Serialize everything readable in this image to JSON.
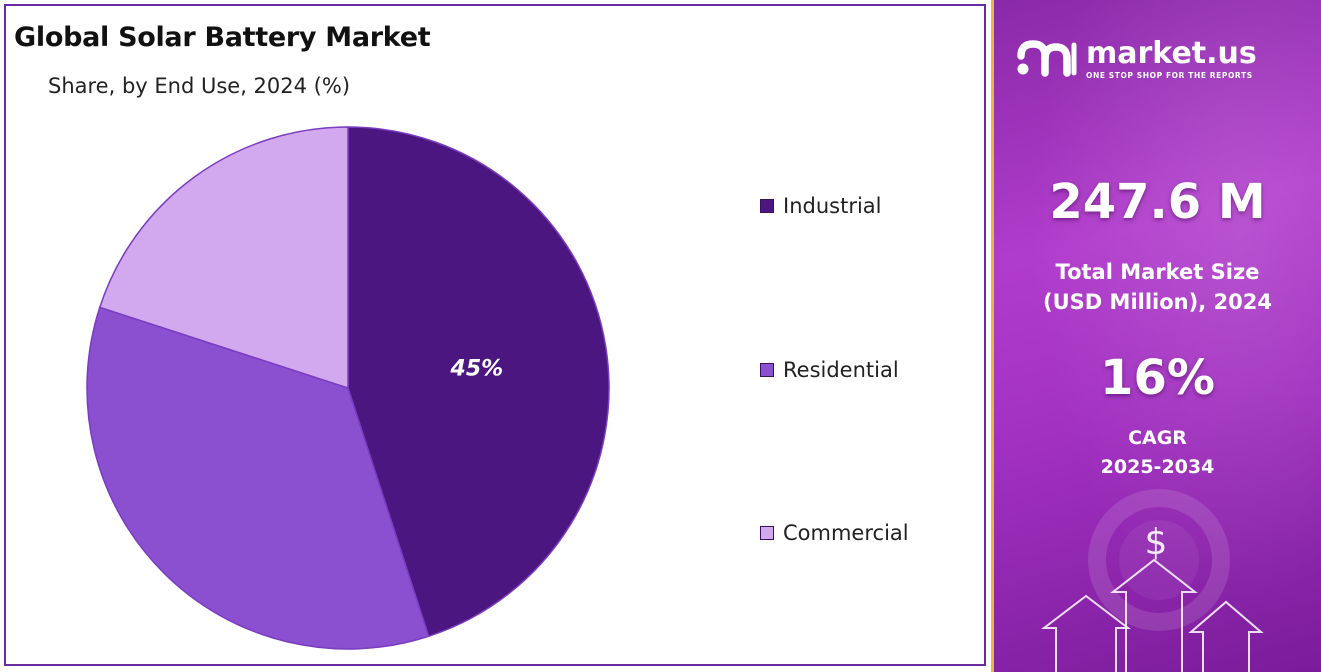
{
  "chart": {
    "title": "Global Solar Battery Market",
    "subtitle": "Share, by End Use, 2024 (%)"
  },
  "chart_data": {
    "type": "pie",
    "title": "Global Solar Battery Market",
    "subtitle": "Share, by End Use, 2024 (%)",
    "slices": [
      {
        "label": "Industrial",
        "value": 45,
        "color": "#4c1681",
        "data_label": "45%"
      },
      {
        "label": "Residential",
        "value": 35,
        "color": "#8a50d0",
        "data_label": ""
      },
      {
        "label": "Commercial",
        "value": 20,
        "color": "#d2a8ee",
        "data_label": ""
      }
    ],
    "legend_position": "right"
  },
  "info": {
    "logo_name": "market.us",
    "logo_tagline": "ONE STOP SHOP FOR THE REPORTS",
    "market_size": "247.6 M",
    "market_size_label_line1": "Total Market Size",
    "market_size_label_line2": "(USD Million), 2024",
    "cagr": "16%",
    "cagr_label": "CAGR",
    "cagr_period": "2025-2034",
    "dollar_symbol": "$"
  },
  "colors": {
    "accent": "#6a2aa0",
    "panel_border": "#e7b844"
  },
  "icons": [
    "market-us-logo-icon",
    "dollar-icon",
    "arrow-up-icon"
  ]
}
